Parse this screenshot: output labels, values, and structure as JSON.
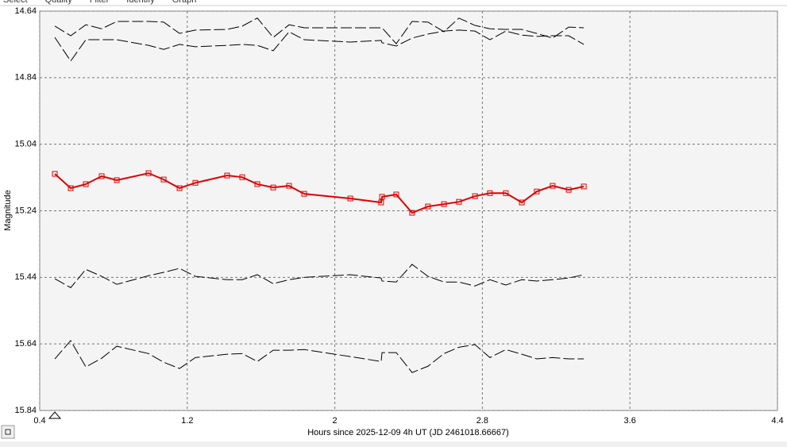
{
  "tabs": [
    "Select",
    "Quality",
    "Filter",
    "Identify",
    "Graph"
  ],
  "chart_data": {
    "type": "line",
    "xlabel": "Hours since 2025-12-09 4h UT (JD 2461018.66667)",
    "ylabel": "Magnitude",
    "x": [
      0.482,
      0.568,
      0.65,
      0.736,
      0.818,
      0.99,
      1.072,
      1.158,
      1.244,
      1.416,
      1.498,
      1.58,
      1.666,
      1.752,
      1.834,
      2.084,
      2.251,
      2.256,
      2.333,
      2.419,
      2.505,
      2.592,
      2.673,
      2.76,
      2.841,
      2.927,
      3.014,
      3.095,
      3.181,
      3.268,
      3.35
    ],
    "series": [
      {
        "color": "#000000",
        "dashed": true,
        "markers": false,
        "values": [
          14.685,
          14.714,
          14.681,
          14.693,
          14.671,
          14.671,
          14.673,
          14.707,
          14.697,
          14.695,
          14.685,
          14.661,
          14.719,
          14.681,
          14.69,
          14.69,
          14.69,
          14.69,
          14.738,
          14.671,
          14.673,
          14.702,
          14.661,
          14.683,
          14.693,
          14.695,
          14.695,
          14.707,
          14.721,
          14.688,
          14.69
        ]
      },
      {
        "color": "#000000",
        "dashed": true,
        "markers": false,
        "values": [
          14.719,
          14.79,
          14.726,
          14.726,
          14.726,
          14.743,
          14.755,
          14.74,
          14.747,
          14.743,
          14.74,
          14.743,
          14.759,
          14.702,
          14.726,
          14.733,
          14.728,
          14.735,
          14.745,
          14.721,
          14.709,
          14.7,
          14.697,
          14.7,
          14.726,
          14.7,
          14.712,
          14.716,
          14.714,
          14.714,
          14.74
        ]
      },
      {
        "color": "#e00000",
        "dashed": false,
        "markers": true,
        "values": [
          15.129,
          15.172,
          15.16,
          15.136,
          15.148,
          15.127,
          15.146,
          15.172,
          15.156,
          15.134,
          15.139,
          15.16,
          15.17,
          15.165,
          15.189,
          15.203,
          15.215,
          15.198,
          15.191,
          15.246,
          15.227,
          15.22,
          15.213,
          15.196,
          15.187,
          15.187,
          15.215,
          15.182,
          15.165,
          15.177,
          15.167
        ]
      },
      {
        "color": "#000000",
        "dashed": true,
        "markers": false,
        "values": [
          15.444,
          15.471,
          15.416,
          15.437,
          15.461,
          15.435,
          15.425,
          15.413,
          15.437,
          15.447,
          15.447,
          15.432,
          15.459,
          15.447,
          15.44,
          15.432,
          15.442,
          15.451,
          15.454,
          15.401,
          15.437,
          15.454,
          15.454,
          15.466,
          15.447,
          15.463,
          15.447,
          15.451,
          15.447,
          15.442,
          15.432
        ]
      },
      {
        "color": "#000000",
        "dashed": true,
        "markers": false,
        "values": [
          15.685,
          15.63,
          15.709,
          15.683,
          15.647,
          15.669,
          15.695,
          15.714,
          15.681,
          15.671,
          15.669,
          15.693,
          15.659,
          15.659,
          15.657,
          15.678,
          15.693,
          15.666,
          15.666,
          15.726,
          15.707,
          15.669,
          15.65,
          15.642,
          15.681,
          15.657,
          15.671,
          15.685,
          15.681,
          15.685,
          15.685
        ]
      }
    ],
    "xlim": [
      0.4,
      4.4
    ],
    "xticks": [
      0.4,
      1.2,
      2,
      2.8,
      3.6,
      4.4
    ],
    "ylim": [
      15.84,
      14.64
    ],
    "yticks": [
      14.64,
      14.84,
      15.04,
      15.24,
      15.44,
      15.64,
      15.84
    ],
    "grid": true
  }
}
